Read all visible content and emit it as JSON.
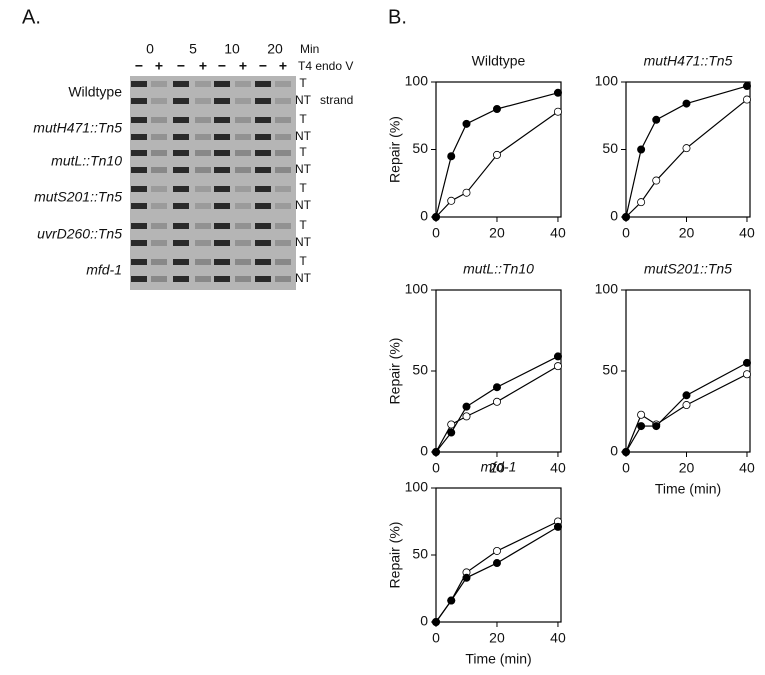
{
  "panel_labels": [
    "A.",
    "B."
  ],
  "gel": {
    "time_unit": "Min",
    "times": [
      "0",
      "5",
      "10",
      "20"
    ],
    "treatment": "T4 endo V",
    "lane_signs": [
      "−",
      "+",
      "−",
      "+",
      "−",
      "+",
      "−",
      "+"
    ],
    "strains": [
      "Wildtype",
      "mutH471::Tn5",
      "mutL::Tn10",
      "mutS201::Tn5",
      "uvrD260::Tn5",
      "mfd-1"
    ],
    "strands": [
      "T",
      "NT"
    ],
    "strand_label": "strand"
  },
  "chart_data": [
    {
      "type": "line",
      "title": "Wildtype",
      "x": [
        0,
        5,
        10,
        20,
        40
      ],
      "series": [
        {
          "color": "#000000",
          "values": [
            0,
            45,
            69,
            80,
            92
          ]
        },
        {
          "color": "#ffffff",
          "values": [
            0,
            12,
            18,
            46,
            78
          ]
        }
      ],
      "xlim": [
        0,
        41
      ],
      "ylim": [
        0,
        100
      ],
      "xticks": [
        0,
        20,
        40
      ],
      "yticks": [
        0,
        50,
        100
      ],
      "ylabel": "Repair (%)"
    },
    {
      "type": "line",
      "title": "mutH471::Tn5",
      "x": [
        0,
        5,
        10,
        20,
        40
      ],
      "series": [
        {
          "color": "#000000",
          "values": [
            0,
            50,
            72,
            84,
            97
          ]
        },
        {
          "color": "#ffffff",
          "values": [
            0,
            11,
            27,
            51,
            87
          ]
        }
      ],
      "xlim": [
        0,
        41
      ],
      "ylim": [
        0,
        100
      ],
      "xticks": [
        0,
        20,
        40
      ],
      "yticks": [
        0,
        50,
        100
      ]
    },
    {
      "type": "line",
      "title": "mutL::Tn10",
      "x": [
        0,
        5,
        10,
        20,
        40
      ],
      "series": [
        {
          "color": "#000000",
          "values": [
            0,
            12,
            28,
            40,
            59
          ]
        },
        {
          "color": "#ffffff",
          "values": [
            0,
            17,
            22,
            31,
            53
          ]
        }
      ],
      "xlim": [
        0,
        41
      ],
      "ylim": [
        0,
        100
      ],
      "xticks": [
        0,
        20,
        40
      ],
      "yticks": [
        0,
        50,
        100
      ],
      "ylabel": "Repair (%)"
    },
    {
      "type": "line",
      "title": "mutS201::Tn5",
      "x": [
        0,
        5,
        10,
        20,
        40
      ],
      "series": [
        {
          "color": "#000000",
          "values": [
            0,
            16,
            16,
            35,
            55
          ]
        },
        {
          "color": "#ffffff",
          "values": [
            0,
            23,
            17,
            29,
            48
          ]
        }
      ],
      "xlim": [
        0,
        41
      ],
      "ylim": [
        0,
        100
      ],
      "xticks": [
        0,
        20,
        40
      ],
      "yticks": [
        0,
        50,
        100
      ],
      "xlabel": "Time (min)"
    },
    {
      "type": "line",
      "title": "mfd-1",
      "x": [
        0,
        5,
        10,
        20,
        40
      ],
      "series": [
        {
          "color": "#000000",
          "values": [
            0,
            16,
            33,
            44,
            71
          ]
        },
        {
          "color": "#ffffff",
          "values": [
            0,
            16,
            37,
            53,
            75
          ]
        }
      ],
      "xlim": [
        0,
        41
      ],
      "ylim": [
        0,
        100
      ],
      "xticks": [
        0,
        20,
        40
      ],
      "yticks": [
        0,
        50,
        100
      ],
      "ylabel": "Repair (%)",
      "xlabel": "Time (min)"
    }
  ]
}
